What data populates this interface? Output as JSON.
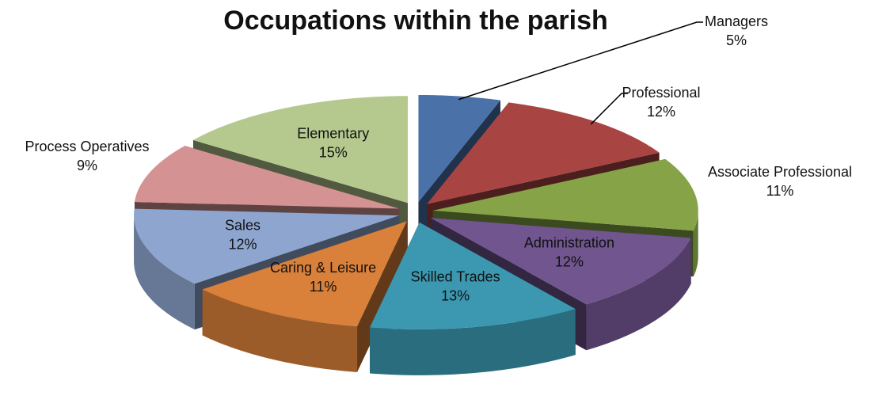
{
  "chart_data": {
    "type": "pie",
    "title": "Occupations within the parish",
    "categories": [
      "Managers",
      "Professional",
      "Associate Professional",
      "Administration",
      "Skilled Trades",
      "Caring & Leisure",
      "Sales",
      "Process Operatives",
      "Elementary"
    ],
    "values": [
      5,
      12,
      11,
      12,
      13,
      11,
      12,
      9,
      15
    ],
    "value_labels": [
      "5%",
      "12%",
      "11%",
      "12%",
      "13%",
      "11%",
      "12%",
      "9%",
      "15%"
    ],
    "colors": [
      "#4a72a8",
      "#a84442",
      "#86a447",
      "#70558f",
      "#3b98b0",
      "#d9803a",
      "#8ea6cf",
      "#d49292",
      "#b5c98f"
    ]
  }
}
